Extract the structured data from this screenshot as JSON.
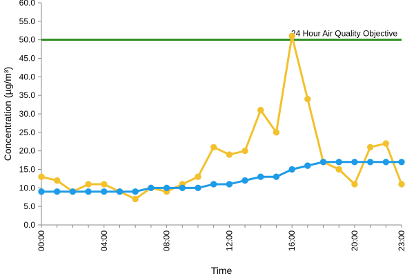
{
  "chart_data": {
    "type": "line",
    "title": "",
    "xlabel": "Time",
    "ylabel": "Concentration (µg/m³)",
    "ylim": [
      0,
      60
    ],
    "yticks": [
      "0.0",
      "5.0",
      "10.0",
      "15.0",
      "20.0",
      "25.0",
      "30.0",
      "35.0",
      "40.0",
      "45.0",
      "50.0",
      "55.0",
      "60.0"
    ],
    "xticks": [
      "00:00",
      "04:00",
      "08:00",
      "12:00",
      "16:00",
      "20:00",
      "23:00"
    ],
    "x": [
      "00:00",
      "01:00",
      "02:00",
      "03:00",
      "04:00",
      "05:00",
      "06:00",
      "07:00",
      "08:00",
      "09:00",
      "10:00",
      "11:00",
      "12:00",
      "13:00",
      "14:00",
      "15:00",
      "16:00",
      "17:00",
      "18:00",
      "19:00",
      "20:00",
      "21:00",
      "22:00",
      "23:00"
    ],
    "grid": false,
    "series": [
      {
        "color": "#f2c12e",
        "values": [
          13,
          12,
          9,
          11,
          11,
          9,
          7,
          10,
          9,
          11,
          13,
          21,
          19,
          20,
          31,
          25,
          51,
          34,
          17,
          15,
          11,
          21,
          22,
          11
        ]
      },
      {
        "color": "#1e9be8",
        "values": [
          9,
          9,
          9,
          9,
          9,
          9,
          9,
          10,
          10,
          10,
          10,
          11,
          11,
          12,
          13,
          13,
          15,
          16,
          17,
          17,
          17,
          17,
          17,
          17
        ]
      }
    ],
    "reference_line": {
      "value": 50,
      "label": "24 Hour Air Quality Objective",
      "color": "#2e8b1f"
    }
  }
}
